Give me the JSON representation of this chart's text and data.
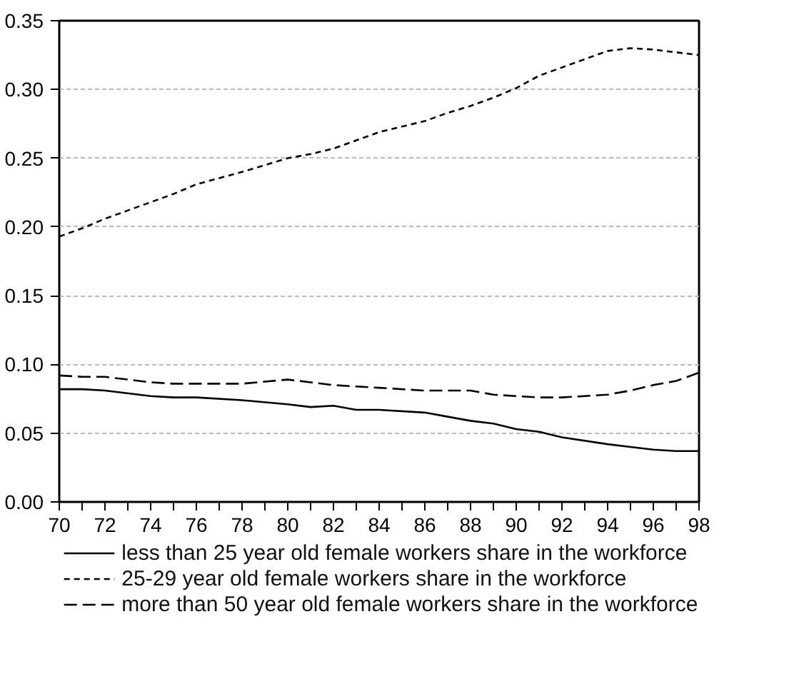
{
  "chart_data": {
    "type": "line",
    "x": [
      70,
      71,
      72,
      74,
      75,
      76,
      78,
      80,
      81,
      82,
      83,
      84,
      86,
      87,
      88,
      89,
      90,
      91,
      92,
      94,
      95,
      96,
      97,
      98
    ],
    "series": [
      {
        "name": "less than 25 year old female workers share in the workforce",
        "color": "#000000",
        "line_style": "solid",
        "values": [
          0.082,
          0.082,
          0.081,
          0.077,
          0.076,
          0.076,
          0.074,
          0.071,
          0.069,
          0.07,
          0.067,
          0.067,
          0.065,
          0.062,
          0.059,
          0.057,
          0.053,
          0.051,
          0.047,
          0.042,
          0.04,
          0.038,
          0.037,
          0.037
        ]
      },
      {
        "name": "25-29 year old female workers share in the workforce",
        "color": "#000000",
        "line_style": "dashed",
        "values": [
          0.193,
          0.199,
          0.206,
          0.218,
          0.224,
          0.231,
          0.24,
          0.25,
          0.253,
          0.257,
          0.263,
          0.269,
          0.277,
          0.283,
          0.288,
          0.294,
          0.301,
          0.31,
          0.316,
          0.328,
          0.33,
          0.329,
          0.327,
          0.325
        ]
      },
      {
        "name": "more than 50 year old female workers share in the workforce",
        "color": "#000000",
        "line_style": "dashed",
        "values": [
          0.092,
          0.091,
          0.091,
          0.087,
          0.086,
          0.086,
          0.086,
          0.089,
          0.087,
          0.085,
          0.084,
          0.083,
          0.081,
          0.081,
          0.081,
          0.078,
          0.077,
          0.076,
          0.076,
          0.078,
          0.081,
          0.085,
          0.088,
          0.094
        ]
      }
    ],
    "xlim": [
      70,
      98
    ],
    "xticks": [
      70,
      72,
      74,
      76,
      78,
      80,
      82,
      84,
      86,
      88,
      90,
      92,
      94,
      96,
      98
    ],
    "ylim": [
      0,
      0.35
    ],
    "yticks": [
      {
        "value": 0,
        "label": "0.00"
      },
      {
        "value": 0.05,
        "label": "0.05"
      },
      {
        "value": 0.1,
        "label": "0.10"
      },
      {
        "value": 0.15,
        "label": "0.15"
      },
      {
        "value": 0.2,
        "label": "0.20"
      },
      {
        "value": 0.25,
        "label": "0.25"
      },
      {
        "value": 0.3,
        "label": "0.30"
      },
      {
        "value": 0.35,
        "label": "0.35"
      }
    ],
    "grid": "y",
    "legend": "bottom"
  }
}
